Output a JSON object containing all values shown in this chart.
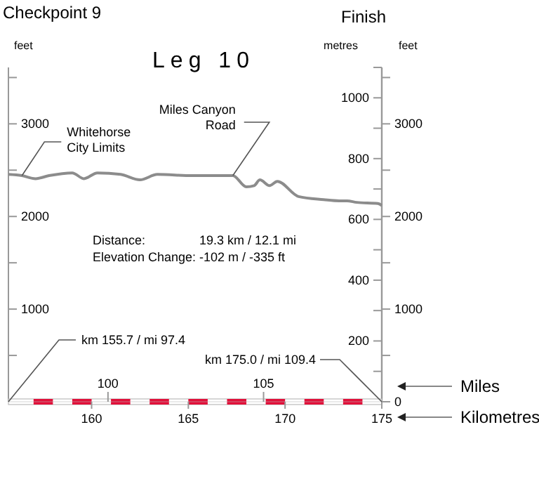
{
  "chart_data": {
    "type": "line",
    "title": "Leg 10",
    "subtitle": "Checkpoint 9",
    "xlabel": "Kilometres",
    "x2label": "Miles",
    "ylabel": "metres",
    "y2label": "feet",
    "y3label": "feet",
    "xlim": [
      155.7,
      175
    ],
    "xticks": [
      160,
      165,
      170,
      175
    ],
    "x2lim": [
      96.8,
      108.8
    ],
    "x2ticks": [
      100,
      105
    ],
    "ylim": [
      0,
      1100
    ],
    "yticks": [
      {
        "value": 100,
        "label": null
      },
      200,
      {
        "value": 300,
        "label": null
      },
      400,
      {
        "value": 500,
        "label": null
      },
      600,
      {
        "value": 700,
        "label": null
      },
      800,
      {
        "value": 900,
        "label": null
      },
      1000,
      {
        "value": 1100,
        "label": null
      }
    ],
    "y2lim": [
      0,
      3609
    ],
    "y2ticks": [
      0,
      {
        "value": 500,
        "label": null
      },
      1000,
      {
        "value": 1500,
        "label": null
      },
      2000,
      {
        "value": 2500,
        "label": null
      },
      3000,
      {
        "value": 3500,
        "label": null
      }
    ],
    "y3lim": [
      0,
      3609
    ],
    "y3ticks": [
      {
        "value": 500,
        "label": null
      },
      1000,
      {
        "value": 1500,
        "label": null
      },
      2000,
      {
        "value": 2500,
        "label": null
      },
      3000,
      {
        "value": 3500,
        "label": null
      }
    ],
    "x": [
      155.7,
      156.4,
      157.1,
      157.8,
      159.0,
      159.6,
      160.3,
      161.5,
      162.5,
      163.4,
      165.2,
      167.3,
      168.0,
      168.4,
      168.7,
      169.2,
      169.6,
      170.7,
      172.0,
      172.8,
      173.2,
      173.7,
      174.8,
      175.0
    ],
    "series": [
      {
        "color": "#8c8c8c",
        "values": [
          748,
          744,
          734,
          744,
          753,
          734,
          753,
          748,
          730,
          748,
          744,
          744,
          707,
          711,
          730,
          711,
          725,
          675,
          665,
          661,
          661,
          656,
          652,
          646
        ]
      }
    ],
    "marker": "none",
    "line_style": "solid",
    "grid": false,
    "annotations": [
      "Finish",
      "Distance:",
      "19.3 km / 12.1 mi",
      "Elevation Change:",
      "-102 m / -335 ft",
      {
        "text": "Whitehorse City Limits",
        "x": 156.4,
        "y": 744
      },
      {
        "text": "Miles Canyon Road",
        "x": 167.3,
        "y": 744
      },
      "km 155.7 / mi 97.4",
      "km 175.0 / mi 109.4"
    ]
  }
}
